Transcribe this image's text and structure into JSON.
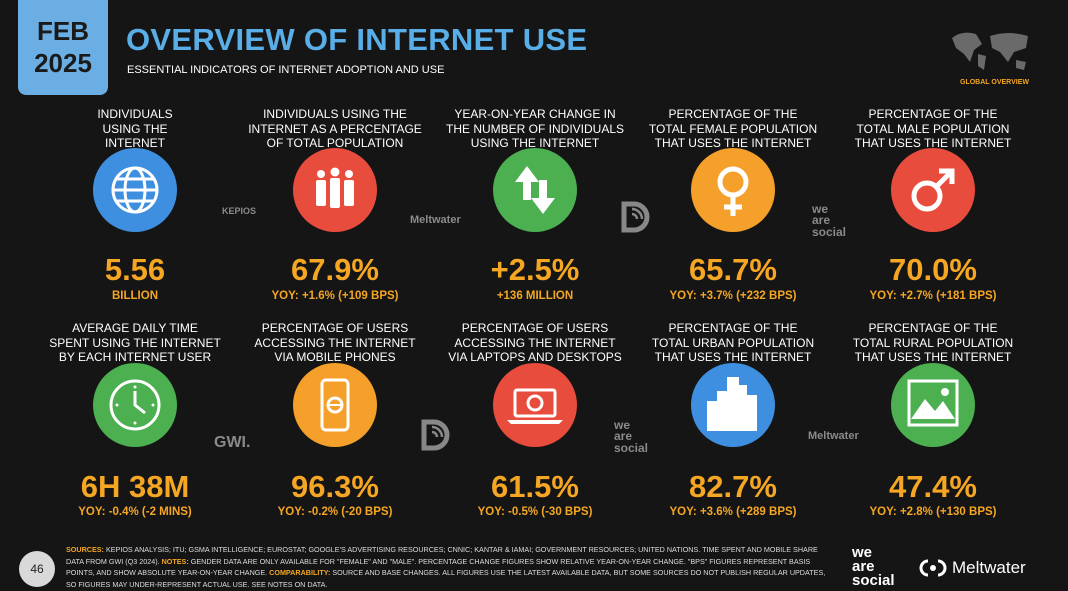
{
  "header": {
    "month": "FEB",
    "year": "2025",
    "title": "OVERVIEW OF INTERNET USE",
    "subtitle": "ESSENTIAL INDICATORS OF INTERNET ADOPTION AND USE",
    "section": "GLOBAL OVERVIEW"
  },
  "tiles": [
    {
      "label": [
        "INDIVIDUALS",
        "USING THE",
        "INTERNET"
      ],
      "value": "5.56",
      "sub": "BILLION"
    },
    {
      "label": [
        "INDIVIDUALS USING THE",
        "INTERNET AS A PERCENTAGE",
        "OF TOTAL POPULATION"
      ],
      "value": "67.9%",
      "sub": "YOY: +1.6% (+109 BPS)"
    },
    {
      "label": [
        "YEAR-ON-YEAR CHANGE IN",
        "THE NUMBER OF INDIVIDUALS",
        "USING THE INTERNET"
      ],
      "value": "+2.5%",
      "sub": "+136 MILLION"
    },
    {
      "label": [
        "PERCENTAGE OF THE",
        "TOTAL FEMALE POPULATION",
        "THAT USES THE INTERNET"
      ],
      "value": "65.7%",
      "sub": "YOY: +3.7% (+232 BPS)"
    },
    {
      "label": [
        "PERCENTAGE OF THE",
        "TOTAL MALE POPULATION",
        "THAT USES THE INTERNET"
      ],
      "value": "70.0%",
      "sub": "YOY: +2.7% (+181 BPS)"
    },
    {
      "label": [
        "AVERAGE DAILY TIME",
        "SPENT USING THE INTERNET",
        "BY EACH INTERNET USER"
      ],
      "value": "6H 38M",
      "sub": "YOY: -0.4% (-2 MINS)"
    },
    {
      "label": [
        "PERCENTAGE OF USERS",
        "ACCESSING THE INTERNET",
        "VIA MOBILE PHONES"
      ],
      "value": "96.3%",
      "sub": "YOY: -0.2% (-20 BPS)"
    },
    {
      "label": [
        "PERCENTAGE OF USERS",
        "ACCESSING THE INTERNET",
        "VIA LAPTOPS AND DESKTOPS"
      ],
      "value": "61.5%",
      "sub": "YOY: -0.5% (-30 BPS)"
    },
    {
      "label": [
        "PERCENTAGE OF THE",
        "TOTAL URBAN POPULATION",
        "THAT USES THE INTERNET"
      ],
      "value": "82.7%",
      "sub": "YOY: +3.6% (+289 BPS)"
    },
    {
      "label": [
        "PERCENTAGE OF THE",
        "TOTAL RURAL POPULATION",
        "THAT USES THE INTERNET"
      ],
      "value": "47.4%",
      "sub": "YOY: +2.8% (+130 BPS)"
    }
  ],
  "watermarks": [
    [
      "KEPIOS"
    ],
    [
      "Meltwater"
    ],
    [
      "we",
      "are",
      "social"
    ],
    [
      "GWI."
    ],
    [
      "we",
      "are",
      "social"
    ],
    [
      "Meltwater"
    ]
  ],
  "footer": {
    "page": "46",
    "sources_label": "SOURCES:",
    "sources_text": "KEPIOS ANALYSIS; ITU; GSMA INTELLIGENCE; EUROSTAT; GOOGLE'S ADVERTISING RESOURCES; CNNIC; KANTAR & IAMAI; GOVERNMENT RESOURCES; UNITED NATIONS. TIME SPENT AND MOBILE SHARE DATA FROM GWI (Q3 2024).",
    "notes_label": "NOTES:",
    "notes_text": "GENDER DATA ARE ONLY AVAILABLE FOR \"FEMALE\" AND \"MALE\". PERCENTAGE CHANGE FIGURES SHOW RELATIVE YEAR-ON-YEAR CHANGE. \"BPS\" FIGURES REPRESENT BASIS POINTS, AND SHOW ABSOLUTE YEAR-ON-YEAR CHANGE.",
    "comparability_label": "COMPARABILITY:",
    "comparability_text": "SOURCE AND BASE CHANGES. ALL FIGURES USE THE LATEST AVAILABLE DATA, BUT SOME SOURCES DO NOT PUBLISH REGULAR UPDATES, SO FIGURES MAY UNDER-REPRESENT ACTUAL USE. SEE NOTES ON DATA.",
    "logos": [
      [
        "we",
        "are",
        "social"
      ],
      "Meltwater"
    ]
  }
}
